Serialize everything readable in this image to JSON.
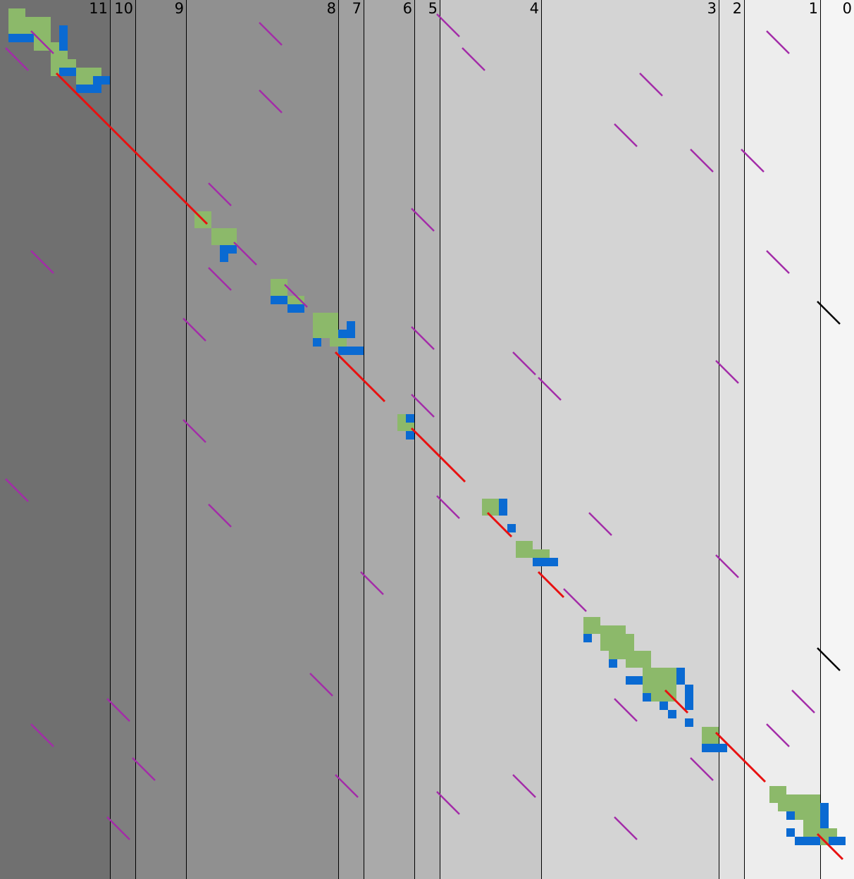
{
  "chart_data": {
    "type": "diagram",
    "title": "",
    "colors": {
      "band_shades": [
        "#707070",
        "#7f7f7f",
        "#888888",
        "#909090",
        "#a0a0a0",
        "#aaaaaa",
        "#b6b6b6",
        "#c8c8c8",
        "#d4d4d4",
        "#e0e0e0",
        "#ededed",
        "#f5f5f5",
        "#fafafa"
      ],
      "divider": "#000000",
      "match_fill": "#8cb96a",
      "gap_fill": "#0a6ad2",
      "diagonal": "#e81010",
      "offdiag": "#a32ca8",
      "marker": "#000000"
    },
    "bands": [
      {
        "label": "11",
        "boundary": 156
      },
      {
        "label": "10",
        "boundary": 192
      },
      {
        "label": "9",
        "boundary": 264
      },
      {
        "label": "8",
        "boundary": 480
      },
      {
        "label": "7",
        "boundary": 516
      },
      {
        "label": "6",
        "boundary": 588
      },
      {
        "label": "5",
        "boundary": 624
      },
      {
        "label": "4",
        "boundary": 768
      },
      {
        "label": "3",
        "boundary": 1020
      },
      {
        "label": "2",
        "boundary": 1056
      },
      {
        "label": "1",
        "boundary": 1164
      },
      {
        "label": "0",
        "boundary": 1212
      }
    ],
    "green_blocks": [
      [
        12,
        12,
        24,
        36
      ],
      [
        36,
        24,
        36,
        36
      ],
      [
        48,
        36,
        24,
        36
      ],
      [
        72,
        60,
        24,
        48
      ],
      [
        96,
        84,
        12,
        12
      ],
      [
        108,
        96,
        36,
        24
      ],
      [
        276,
        300,
        24,
        24
      ],
      [
        300,
        324,
        36,
        24
      ],
      [
        384,
        396,
        24,
        24
      ],
      [
        408,
        420,
        24,
        12
      ],
      [
        444,
        444,
        36,
        36
      ],
      [
        468,
        468,
        24,
        24
      ],
      [
        564,
        588,
        24,
        24
      ],
      [
        684,
        708,
        24,
        24
      ],
      [
        732,
        768,
        24,
        24
      ],
      [
        756,
        780,
        24,
        24
      ],
      [
        828,
        876,
        24,
        24
      ],
      [
        852,
        888,
        36,
        36
      ],
      [
        864,
        900,
        36,
        36
      ],
      [
        888,
        924,
        36,
        24
      ],
      [
        912,
        948,
        48,
        48
      ],
      [
        996,
        1032,
        24,
        24
      ],
      [
        1092,
        1116,
        24,
        24
      ],
      [
        1104,
        1128,
        60,
        24
      ],
      [
        1116,
        1140,
        48,
        24
      ],
      [
        1140,
        1164,
        24,
        24
      ],
      [
        1164,
        1176,
        24,
        24
      ]
    ],
    "blue_blocks": [
      [
        12,
        48,
        36,
        12
      ],
      [
        84,
        36,
        12,
        36
      ],
      [
        84,
        96,
        24,
        12
      ],
      [
        108,
        120,
        36,
        12
      ],
      [
        132,
        108,
        24,
        12
      ],
      [
        312,
        348,
        12,
        24
      ],
      [
        312,
        348,
        24,
        12
      ],
      [
        384,
        420,
        24,
        12
      ],
      [
        408,
        432,
        24,
        12
      ],
      [
        444,
        480,
        12,
        12
      ],
      [
        480,
        468,
        24,
        12
      ],
      [
        492,
        456,
        12,
        24
      ],
      [
        480,
        492,
        36,
        12
      ],
      [
        576,
        588,
        12,
        12
      ],
      [
        576,
        612,
        12,
        12
      ],
      [
        708,
        708,
        12,
        24
      ],
      [
        720,
        744,
        12,
        12
      ],
      [
        756,
        792,
        36,
        12
      ],
      [
        828,
        900,
        12,
        12
      ],
      [
        864,
        936,
        12,
        12
      ],
      [
        888,
        960,
        24,
        12
      ],
      [
        912,
        984,
        12,
        12
      ],
      [
        936,
        996,
        12,
        12
      ],
      [
        948,
        1008,
        12,
        12
      ],
      [
        960,
        948,
        12,
        24
      ],
      [
        972,
        972,
        12,
        36
      ],
      [
        972,
        1020,
        12,
        12
      ],
      [
        996,
        1056,
        36,
        12
      ],
      [
        1116,
        1152,
        12,
        12
      ],
      [
        1116,
        1176,
        12,
        12
      ],
      [
        1128,
        1188,
        36,
        12
      ],
      [
        1164,
        1140,
        12,
        36
      ],
      [
        1176,
        1188,
        24,
        12
      ]
    ],
    "red_lines": [
      [
        80,
        104,
        156,
        180
      ],
      [
        156,
        180,
        294,
        318
      ],
      [
        476,
        500,
        546,
        570
      ],
      [
        584,
        608,
        660,
        684
      ],
      [
        692,
        728,
        726,
        762
      ],
      [
        764,
        812,
        800,
        848
      ],
      [
        944,
        980,
        976,
        1012
      ],
      [
        1016,
        1040,
        1086,
        1110
      ],
      [
        1160,
        1184,
        1196,
        1220
      ]
    ],
    "purple_lines": [
      [
        368,
        32,
        400,
        64
      ],
      [
        620,
        20,
        652,
        52
      ],
      [
        44,
        44,
        76,
        76
      ],
      [
        656,
        68,
        688,
        100
      ],
      [
        1088,
        44,
        1120,
        76
      ],
      [
        8,
        68,
        40,
        100
      ],
      [
        368,
        128,
        400,
        160
      ],
      [
        908,
        104,
        940,
        136
      ],
      [
        872,
        176,
        904,
        208
      ],
      [
        980,
        212,
        1012,
        244
      ],
      [
        1052,
        212,
        1084,
        244
      ],
      [
        296,
        260,
        328,
        292
      ],
      [
        584,
        296,
        616,
        328
      ],
      [
        44,
        356,
        76,
        388
      ],
      [
        1088,
        356,
        1120,
        388
      ],
      [
        332,
        344,
        364,
        376
      ],
      [
        296,
        380,
        328,
        412
      ],
      [
        404,
        404,
        436,
        436
      ],
      [
        260,
        452,
        292,
        484
      ],
      [
        584,
        464,
        616,
        496
      ],
      [
        728,
        500,
        760,
        532
      ],
      [
        764,
        536,
        796,
        568
      ],
      [
        1016,
        512,
        1048,
        544
      ],
      [
        584,
        560,
        616,
        592
      ],
      [
        260,
        596,
        292,
        628
      ],
      [
        620,
        704,
        652,
        736
      ],
      [
        8,
        680,
        40,
        712
      ],
      [
        296,
        716,
        328,
        748
      ],
      [
        836,
        728,
        868,
        760
      ],
      [
        512,
        812,
        544,
        844
      ],
      [
        1016,
        788,
        1048,
        820
      ],
      [
        800,
        836,
        832,
        868
      ],
      [
        440,
        956,
        472,
        988
      ],
      [
        152,
        992,
        184,
        1024
      ],
      [
        872,
        992,
        904,
        1024
      ],
      [
        1124,
        980,
        1156,
        1012
      ],
      [
        44,
        1028,
        76,
        1060
      ],
      [
        1088,
        1028,
        1120,
        1060
      ],
      [
        188,
        1076,
        220,
        1108
      ],
      [
        980,
        1076,
        1012,
        1108
      ],
      [
        476,
        1100,
        508,
        1132
      ],
      [
        728,
        1100,
        760,
        1132
      ],
      [
        620,
        1124,
        652,
        1156
      ],
      [
        152,
        1160,
        184,
        1192
      ],
      [
        872,
        1160,
        904,
        1192
      ]
    ],
    "black_lines": [
      [
        1160,
        428,
        1192,
        460
      ],
      [
        1160,
        920,
        1192,
        952
      ]
    ]
  }
}
